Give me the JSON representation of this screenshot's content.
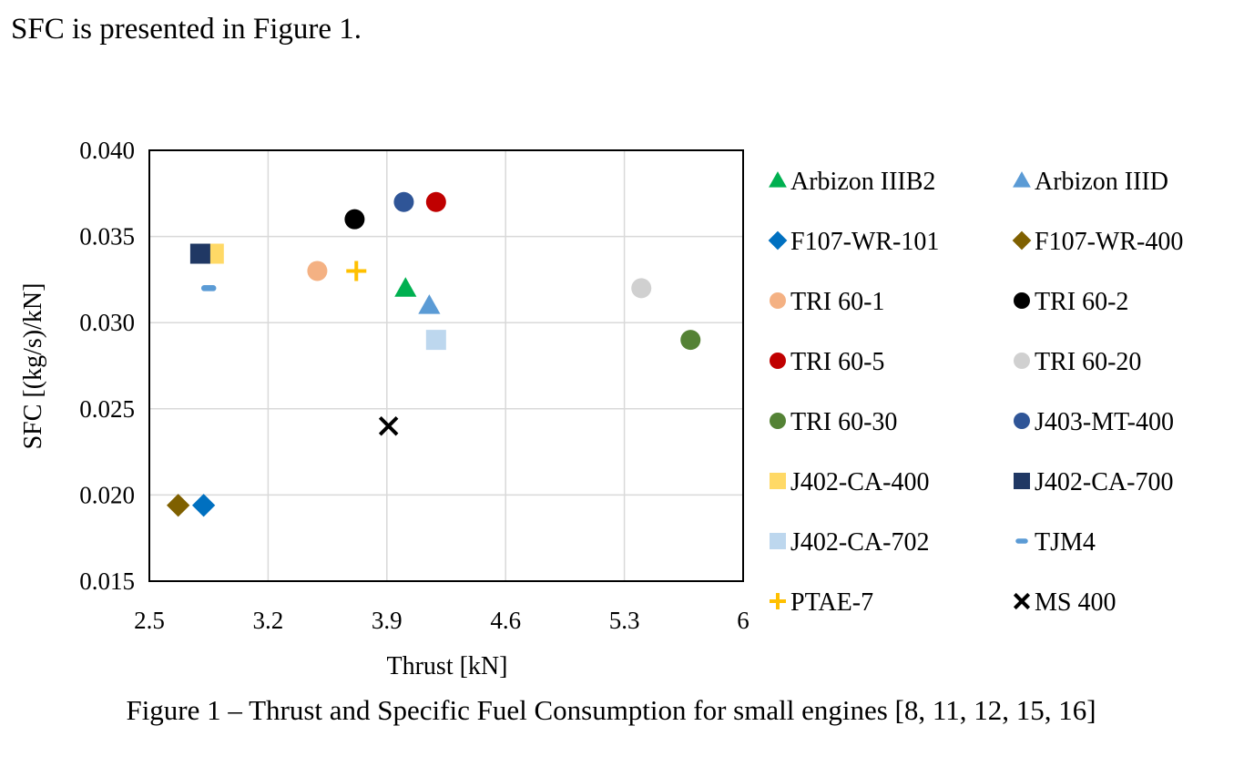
{
  "document": {
    "intro_text": "SFC is presented in Figure 1.",
    "caption": "Figure 1 – Thrust and Specific Fuel Consumption for small engines [8, 11, 12, 15, 16]"
  },
  "chart_data": {
    "type": "scatter",
    "xlabel": "Thrust [kN]",
    "ylabel": "SFC [(kg/s)/kN]",
    "xlim": [
      2.5,
      6
    ],
    "ylim": [
      0.015,
      0.04
    ],
    "x_ticks": [
      "2.5",
      "3.2",
      "3.9",
      "4.6",
      "5.3",
      "6"
    ],
    "y_ticks": [
      "0.015",
      "0.020",
      "0.025",
      "0.030",
      "0.035",
      "0.040"
    ],
    "grid": true,
    "legend_position": "right",
    "series": [
      {
        "name": "Arbizon IIIB2",
        "marker": "triangle",
        "color": "#00b050",
        "x": 4.01,
        "y": 0.032
      },
      {
        "name": "Arbizon IIID",
        "marker": "triangle",
        "color": "#5b9bd5",
        "x": 4.15,
        "y": 0.031
      },
      {
        "name": "F107-WR-101",
        "marker": "diamond",
        "color": "#0070c0",
        "x": 2.82,
        "y": 0.0194
      },
      {
        "name": "F107-WR-400",
        "marker": "diamond",
        "color": "#7f6000",
        "x": 2.67,
        "y": 0.0194
      },
      {
        "name": "TRI 60-1",
        "marker": "circle",
        "color": "#f4b183",
        "x": 3.49,
        "y": 0.033
      },
      {
        "name": "TRI 60-2",
        "marker": "circle",
        "color": "#000000",
        "x": 3.71,
        "y": 0.036
      },
      {
        "name": "TRI 60-5",
        "marker": "circle",
        "color": "#c00000",
        "x": 4.19,
        "y": 0.037
      },
      {
        "name": "TRI 60-20",
        "marker": "circle",
        "color": "#d0d0d0",
        "x": 5.4,
        "y": 0.032
      },
      {
        "name": "TRI 60-30",
        "marker": "circle",
        "color": "#548235",
        "x": 5.69,
        "y": 0.029
      },
      {
        "name": "J403-MT-400",
        "marker": "circle",
        "color": "#2f5597",
        "x": 4.0,
        "y": 0.037
      },
      {
        "name": "J402-CA-400",
        "marker": "square",
        "color": "#ffd966",
        "x": 2.88,
        "y": 0.034
      },
      {
        "name": "J402-CA-700",
        "marker": "square",
        "color": "#203864",
        "x": 2.8,
        "y": 0.034
      },
      {
        "name": "J402-CA-702",
        "marker": "square",
        "color": "#bdd7ee",
        "x": 4.19,
        "y": 0.029
      },
      {
        "name": "TJM4",
        "marker": "dash",
        "color": "#5b9bd5",
        "x": 2.85,
        "y": 0.032
      },
      {
        "name": "PTAE-7",
        "marker": "plus",
        "color": "#ffc000",
        "x": 3.72,
        "y": 0.033
      },
      {
        "name": "MS 400",
        "marker": "x",
        "color": "#000000",
        "x": 3.91,
        "y": 0.024
      }
    ]
  }
}
